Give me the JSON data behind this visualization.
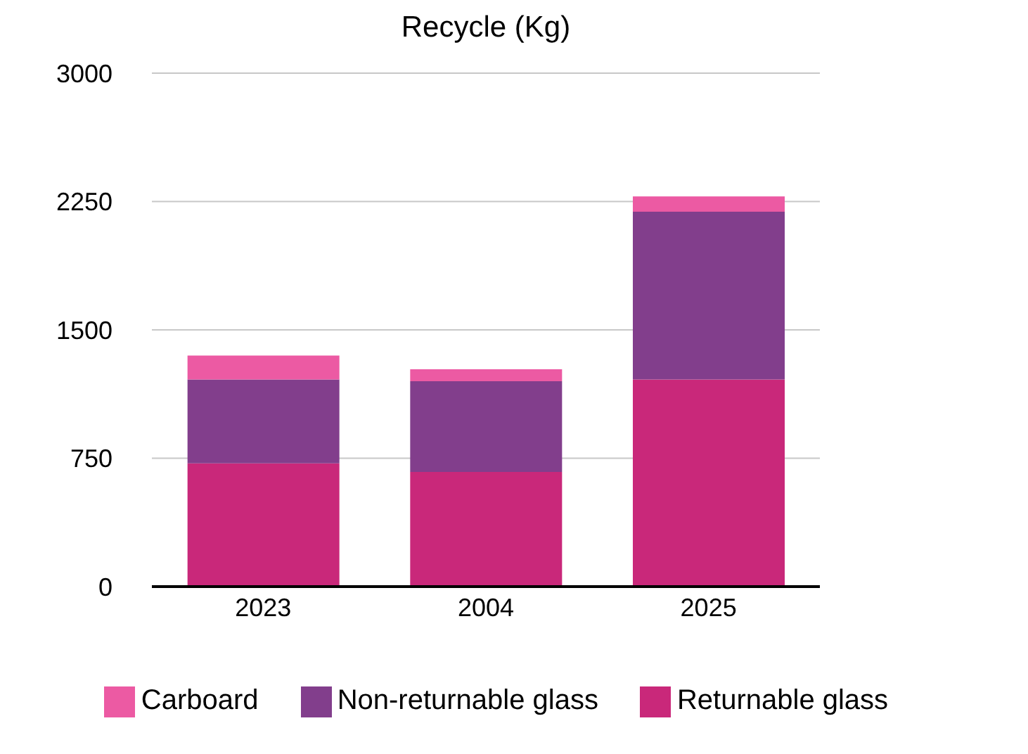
{
  "chart_data": {
    "type": "bar",
    "title": "Recycle (Kg)",
    "categories": [
      "2023",
      "2004",
      "2025"
    ],
    "stacked": true,
    "series": [
      {
        "name": "Returnable glass",
        "color": "#c9287a",
        "values": [
          720,
          670,
          1210
        ]
      },
      {
        "name": "Non-returnable glass",
        "color": "#823e8c",
        "values": [
          490,
          530,
          980
        ]
      },
      {
        "name": "Carboard",
        "color": "#ec5aa3",
        "values": [
          140,
          70,
          90
        ]
      }
    ],
    "ylim": [
      0,
      3000
    ],
    "yticks": [
      0,
      750,
      1500,
      2250,
      3000
    ],
    "grid": "y",
    "legend": "bottom"
  }
}
